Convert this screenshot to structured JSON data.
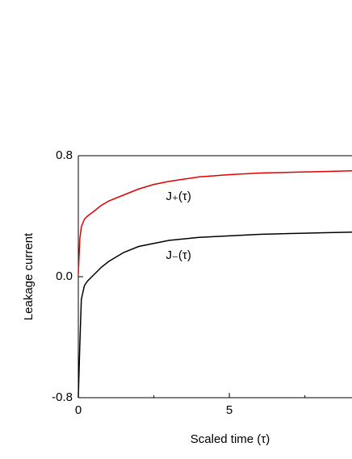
{
  "chart_data": {
    "type": "line",
    "xlabel": "Scaled time (τ)",
    "ylabel": "Leakage current",
    "x": [
      0,
      0.05,
      0.1,
      0.2,
      0.3,
      0.5,
      0.75,
      1,
      1.5,
      2,
      2.5,
      3,
      4,
      5,
      6,
      7,
      8,
      9.06
    ],
    "series": [
      {
        "name": "J₊(τ)",
        "color": "#e00000",
        "values": [
          0.02,
          0.25,
          0.33,
          0.38,
          0.4,
          0.43,
          0.47,
          0.5,
          0.54,
          0.58,
          0.61,
          0.63,
          0.66,
          0.675,
          0.685,
          0.69,
          0.695,
          0.7
        ]
      },
      {
        "name": "J₋(τ)",
        "color": "#000000",
        "values": [
          -0.8,
          -0.45,
          -0.15,
          -0.06,
          -0.03,
          0.01,
          0.06,
          0.1,
          0.16,
          0.2,
          0.22,
          0.24,
          0.26,
          0.27,
          0.28,
          0.285,
          0.29,
          0.295
        ]
      }
    ],
    "xlim": [
      0,
      9.06
    ],
    "xticks": [
      0,
      5
    ],
    "xminor_ticks": [
      2.5,
      7.5
    ],
    "ylim": [
      -0.8,
      0.8
    ],
    "yticks": [
      -0.8,
      {
        "value": 0,
        "label": "0.0"
      },
      0.8
    ],
    "grid": false
  }
}
